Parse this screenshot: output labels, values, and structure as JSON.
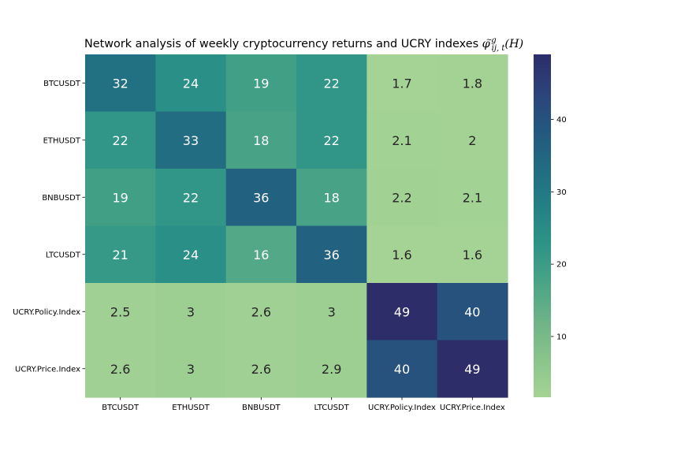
{
  "chart_data": {
    "type": "heatmap",
    "title_text": "Network analysis of weekly cryptocurrency returns and UCRY indexes ",
    "title_math": {
      "symbol": "φ",
      "accent": "~",
      "superscript": "g",
      "subscript": "ij, t",
      "argument": "(H)"
    },
    "rows": [
      "BTCUSDT",
      "ETHUSDT",
      "BNBUSDT",
      "LTCUSDT",
      "UCRY.Policy.Index",
      "UCRY.Price.Index"
    ],
    "columns": [
      "BTCUSDT",
      "ETHUSDT",
      "BNBUSDT",
      "LTCUSDT",
      "UCRY.Policy.Index",
      "UCRY.Price.Index"
    ],
    "values": [
      [
        32,
        24,
        19,
        22,
        1.7,
        1.8
      ],
      [
        22,
        33,
        18,
        22,
        2.1,
        2
      ],
      [
        19,
        22,
        36,
        18,
        2.2,
        2.1
      ],
      [
        21,
        24,
        16,
        36,
        1.6,
        1.6
      ],
      [
        2.5,
        3,
        2.6,
        3,
        49,
        40
      ],
      [
        2.6,
        3,
        2.6,
        2.9,
        40,
        49
      ]
    ],
    "colormap": "crest",
    "color_range": [
      1.6,
      49
    ],
    "colorbar_ticks": [
      10,
      20,
      30,
      40
    ],
    "colorbar_stops": [
      "#a5d395",
      "#89c48a",
      "#6db388",
      "#4aa486",
      "#2d9487",
      "#238085",
      "#226c82",
      "#23587e",
      "#2c437a",
      "#2c2d69"
    ]
  }
}
